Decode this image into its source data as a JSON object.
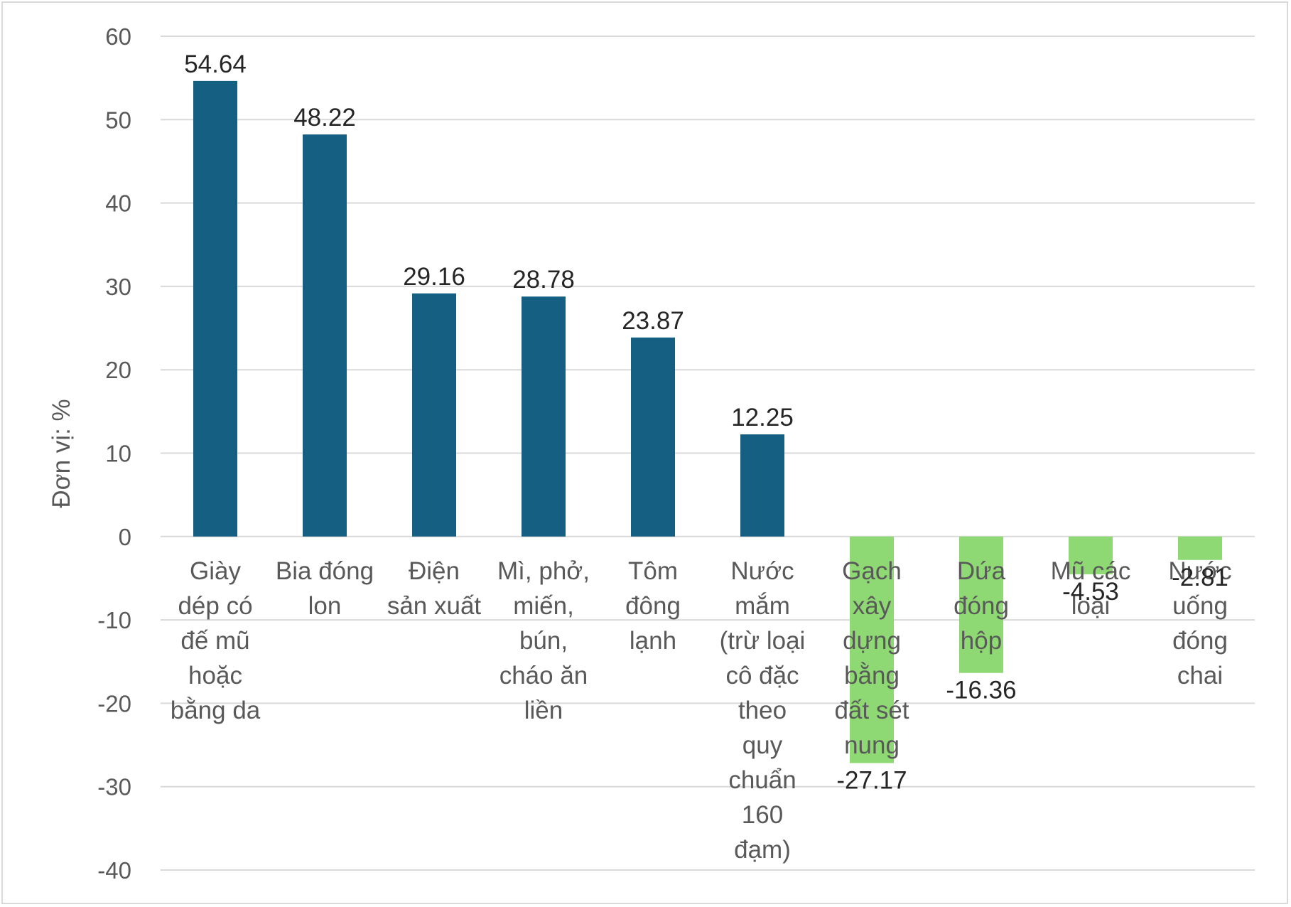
{
  "chart_data": {
    "type": "bar",
    "title": "",
    "xlabel": "",
    "ylabel": "Đơn vị: %",
    "ylim": [
      -40,
      60
    ],
    "yticks": [
      60,
      50,
      40,
      30,
      20,
      10,
      0,
      -10,
      -20,
      -30,
      -40
    ],
    "grid": true,
    "legend": "none",
    "categories": [
      "Giày dép có đế mũ hoặc bằng da",
      "Bia đóng lon",
      "Điện sản xuất",
      "Mì, phở, miến, bún, cháo ăn liền",
      "Tôm đông lạnh",
      "Nước mắm (trừ loại cô đặc theo quy chuẩn 160 đạm)",
      "Gạch xây dựng bằng đất sét nung",
      "Dứa đóng hộp",
      "Mũ các loại",
      "Nước uống đóng chai"
    ],
    "category_lines": [
      [
        "Giày",
        "dép có",
        "đế mũ",
        "hoặc",
        "bằng da"
      ],
      [
        "Bia đóng",
        "lon"
      ],
      [
        "Điện",
        "sản xuất"
      ],
      [
        "Mì, phở,",
        "miến,",
        "bún,",
        "cháo ăn",
        "liền"
      ],
      [
        "Tôm",
        "đông",
        "lạnh"
      ],
      [
        "Nước",
        "mắm",
        "(trừ loại",
        "cô đặc",
        "theo",
        "quy",
        "chuẩn",
        "160",
        "đạm)"
      ],
      [
        "Gạch",
        "xây",
        "dựng",
        "bằng",
        "đất sét",
        "nung"
      ],
      [
        "Dứa",
        "đóng",
        "hộp"
      ],
      [
        "Mũ các",
        "loại"
      ],
      [
        "Nước",
        "uống",
        "đóng",
        "chai"
      ]
    ],
    "values": [
      54.64,
      48.22,
      29.16,
      28.78,
      23.87,
      12.25,
      -27.17,
      -16.36,
      -4.53,
      -2.81
    ],
    "value_labels": [
      "54.64",
      "48.22",
      "29.16",
      "28.78",
      "23.87",
      "12.25",
      "-27.17",
      "-16.36",
      "-4.53",
      "-2.81"
    ],
    "colors": {
      "positive": "#156082",
      "negative": "#8ed973"
    }
  }
}
